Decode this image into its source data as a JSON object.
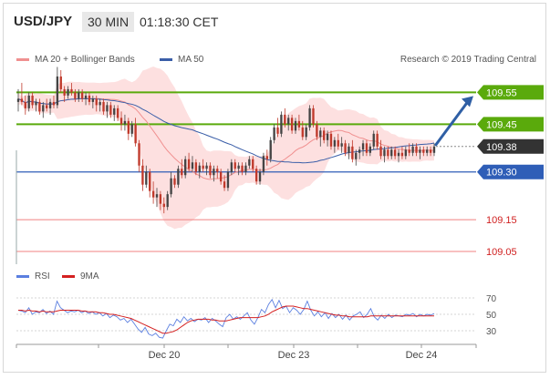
{
  "header": {
    "pair": "USD/JPY",
    "timeframe": "30 MIN",
    "time": "01:18:30 CET"
  },
  "legend": {
    "ma20_label": "MA 20 + Bollinger Bands",
    "ma50_label": "MA 50",
    "credit": "Research © 2019 Trading Central",
    "rsi_label": "RSI",
    "ma9_label": "9MA"
  },
  "colors": {
    "resistance": "#5aaa0c",
    "support": "#2f5eb7",
    "price_line": "#333333",
    "minor_level": "#f08080",
    "bollinger_fill": "#fde0e0",
    "ma20": "#f09090",
    "ma50": "#3a5ea8",
    "candle_up": "#444444",
    "candle_down": "#c0392b",
    "rsi": "#5b7fe0",
    "rsi_ma9": "#d42020",
    "arrow": "#2f5fa5"
  },
  "chart_data": {
    "type": "candlestick",
    "price_axis": {
      "min": 109.01,
      "max": 109.64
    },
    "levels": [
      {
        "label": "109.55",
        "value": 109.55,
        "kind": "resistance"
      },
      {
        "label": "109.45",
        "value": 109.45,
        "kind": "resistance"
      },
      {
        "label": "109.38",
        "value": 109.38,
        "kind": "current"
      },
      {
        "label": "109.30",
        "value": 109.3,
        "kind": "support"
      },
      {
        "label": "109.15",
        "value": 109.15,
        "kind": "minor"
      },
      {
        "label": "109.05",
        "value": 109.05,
        "kind": "minor"
      }
    ],
    "x_labels": [
      "Dec 20",
      "Dec 23",
      "Dec 24"
    ],
    "candles": [
      [
        109.52,
        109.56,
        109.49,
        109.53
      ],
      [
        109.53,
        109.58,
        109.51,
        109.52
      ],
      [
        109.52,
        109.54,
        109.48,
        109.5
      ],
      [
        109.5,
        109.55,
        109.49,
        109.54
      ],
      [
        109.54,
        109.55,
        109.5,
        109.51
      ],
      [
        109.51,
        109.53,
        109.49,
        109.52
      ],
      [
        109.52,
        109.53,
        109.48,
        109.49
      ],
      [
        109.49,
        109.52,
        109.47,
        109.51
      ],
      [
        109.51,
        109.53,
        109.49,
        109.5
      ],
      [
        109.5,
        109.53,
        109.48,
        109.52
      ],
      [
        109.52,
        109.54,
        109.5,
        109.51
      ],
      [
        109.51,
        109.63,
        109.5,
        109.6
      ],
      [
        109.6,
        109.62,
        109.55,
        109.56
      ],
      [
        109.56,
        109.57,
        109.52,
        109.54
      ],
      [
        109.54,
        109.57,
        109.53,
        109.56
      ],
      [
        109.56,
        109.58,
        109.54,
        109.55
      ],
      [
        109.55,
        109.56,
        109.52,
        109.53
      ],
      [
        109.53,
        109.56,
        109.52,
        109.55
      ],
      [
        109.55,
        109.56,
        109.52,
        109.53
      ],
      [
        109.53,
        109.55,
        109.51,
        109.54
      ],
      [
        109.54,
        109.55,
        109.51,
        109.52
      ],
      [
        109.52,
        109.54,
        109.5,
        109.53
      ],
      [
        109.53,
        109.54,
        109.49,
        109.51
      ],
      [
        109.51,
        109.53,
        109.49,
        109.52
      ],
      [
        109.52,
        109.53,
        109.48,
        109.49
      ],
      [
        109.49,
        109.52,
        109.47,
        109.51
      ],
      [
        109.51,
        109.52,
        109.47,
        109.48
      ],
      [
        109.48,
        109.51,
        109.46,
        109.5
      ],
      [
        109.5,
        109.51,
        109.46,
        109.47
      ],
      [
        109.47,
        109.49,
        109.43,
        109.45
      ],
      [
        109.45,
        109.48,
        109.43,
        109.46
      ],
      [
        109.46,
        109.47,
        109.4,
        109.42
      ],
      [
        109.42,
        109.46,
        109.41,
        109.45
      ],
      [
        109.45,
        109.47,
        109.38,
        109.39
      ],
      [
        109.39,
        109.4,
        109.3,
        109.32
      ],
      [
        109.32,
        109.34,
        109.24,
        109.26
      ],
      [
        109.26,
        109.32,
        109.25,
        109.3
      ],
      [
        109.3,
        109.31,
        109.22,
        109.24
      ],
      [
        109.24,
        109.27,
        109.2,
        109.22
      ],
      [
        109.22,
        109.25,
        109.19,
        109.23
      ],
      [
        109.23,
        109.24,
        109.18,
        109.2
      ],
      [
        109.2,
        109.22,
        109.17,
        109.19
      ],
      [
        109.19,
        109.24,
        109.18,
        109.23
      ],
      [
        109.23,
        109.3,
        109.22,
        109.28
      ],
      [
        109.28,
        109.29,
        109.25,
        109.26
      ],
      [
        109.26,
        109.32,
        109.25,
        109.31
      ],
      [
        109.31,
        109.34,
        109.28,
        109.29
      ],
      [
        109.29,
        109.35,
        109.28,
        109.34
      ],
      [
        109.34,
        109.36,
        109.3,
        109.31
      ],
      [
        109.31,
        109.35,
        109.3,
        109.33
      ],
      [
        109.33,
        109.34,
        109.29,
        109.3
      ],
      [
        109.3,
        109.33,
        109.28,
        109.32
      ],
      [
        109.32,
        109.34,
        109.3,
        109.31
      ],
      [
        109.31,
        109.33,
        109.29,
        109.32
      ],
      [
        109.32,
        109.33,
        109.28,
        109.29
      ],
      [
        109.29,
        109.32,
        109.27,
        109.31
      ],
      [
        109.31,
        109.32,
        109.28,
        109.3
      ],
      [
        109.3,
        109.31,
        109.26,
        109.27
      ],
      [
        109.27,
        109.29,
        109.24,
        109.25
      ],
      [
        109.25,
        109.31,
        109.24,
        109.3
      ],
      [
        109.3,
        109.34,
        109.29,
        109.33
      ],
      [
        109.33,
        109.34,
        109.3,
        109.31
      ],
      [
        109.31,
        109.33,
        109.29,
        109.32
      ],
      [
        109.32,
        109.33,
        109.29,
        109.3
      ],
      [
        109.3,
        109.33,
        109.29,
        109.32
      ],
      [
        109.32,
        109.35,
        109.31,
        109.34
      ],
      [
        109.34,
        109.35,
        109.3,
        109.31
      ],
      [
        109.31,
        109.32,
        109.26,
        109.27
      ],
      [
        109.27,
        109.31,
        109.26,
        109.3
      ],
      [
        109.3,
        109.36,
        109.29,
        109.35
      ],
      [
        109.35,
        109.37,
        109.32,
        109.34
      ],
      [
        109.34,
        109.41,
        109.33,
        109.4
      ],
      [
        109.4,
        109.45,
        109.39,
        109.44
      ],
      [
        109.44,
        109.47,
        109.41,
        109.42
      ],
      [
        109.42,
        109.49,
        109.41,
        109.48
      ],
      [
        109.48,
        109.5,
        109.44,
        109.45
      ],
      [
        109.45,
        109.48,
        109.43,
        109.47
      ],
      [
        109.47,
        109.48,
        109.42,
        109.43
      ],
      [
        109.43,
        109.47,
        109.42,
        109.46
      ],
      [
        109.46,
        109.48,
        109.43,
        109.44
      ],
      [
        109.44,
        109.46,
        109.4,
        109.41
      ],
      [
        109.41,
        109.45,
        109.4,
        109.44
      ],
      [
        109.44,
        109.51,
        109.43,
        109.5
      ],
      [
        109.5,
        109.51,
        109.44,
        109.45
      ],
      [
        109.45,
        109.46,
        109.4,
        109.41
      ],
      [
        109.41,
        109.44,
        109.38,
        109.43
      ],
      [
        109.43,
        109.44,
        109.39,
        109.4
      ],
      [
        109.4,
        109.43,
        109.38,
        109.42
      ],
      [
        109.42,
        109.43,
        109.37,
        109.38
      ],
      [
        109.38,
        109.41,
        109.36,
        109.4
      ],
      [
        109.4,
        109.42,
        109.37,
        109.38
      ],
      [
        109.38,
        109.41,
        109.36,
        109.39
      ],
      [
        109.39,
        109.4,
        109.35,
        109.36
      ],
      [
        109.36,
        109.39,
        109.34,
        109.38
      ],
      [
        109.38,
        109.4,
        109.33,
        109.34
      ],
      [
        109.34,
        109.37,
        109.32,
        109.36
      ],
      [
        109.36,
        109.38,
        109.34,
        109.37
      ],
      [
        109.37,
        109.4,
        109.35,
        109.39
      ],
      [
        109.39,
        109.4,
        109.35,
        109.36
      ],
      [
        109.36,
        109.39,
        109.35,
        109.38
      ],
      [
        109.38,
        109.43,
        109.37,
        109.42
      ],
      [
        109.42,
        109.43,
        109.37,
        109.38
      ],
      [
        109.38,
        109.4,
        109.34,
        109.35
      ],
      [
        109.35,
        109.38,
        109.33,
        109.37
      ],
      [
        109.37,
        109.38,
        109.34,
        109.35
      ],
      [
        109.35,
        109.38,
        109.34,
        109.37
      ],
      [
        109.37,
        109.38,
        109.34,
        109.35
      ],
      [
        109.35,
        109.37,
        109.33,
        109.36
      ],
      [
        109.36,
        109.38,
        109.34,
        109.35
      ],
      [
        109.35,
        109.38,
        109.34,
        109.37
      ],
      [
        109.37,
        109.39,
        109.35,
        109.36
      ],
      [
        109.36,
        109.39,
        109.35,
        109.38
      ],
      [
        109.38,
        109.39,
        109.35,
        109.36
      ],
      [
        109.36,
        109.38,
        109.34,
        109.37
      ],
      [
        109.37,
        109.38,
        109.35,
        109.36
      ],
      [
        109.36,
        109.38,
        109.35,
        109.37
      ],
      [
        109.37,
        109.38,
        109.35,
        109.36
      ],
      [
        109.36,
        109.39,
        109.35,
        109.38
      ]
    ],
    "rsi": {
      "levels": [
        70,
        50,
        30
      ],
      "rsi_values": [
        55,
        54,
        52,
        58,
        50,
        53,
        52,
        56,
        51,
        54,
        50,
        66,
        58,
        55,
        52,
        54,
        53,
        55,
        52,
        54,
        51,
        53,
        50,
        52,
        48,
        51,
        46,
        49,
        47,
        43,
        45,
        40,
        44,
        38,
        32,
        28,
        34,
        26,
        24,
        27,
        22,
        21,
        30,
        38,
        36,
        44,
        40,
        47,
        42,
        45,
        41,
        44,
        43,
        46,
        40,
        45,
        42,
        38,
        35,
        46,
        50,
        44,
        47,
        44,
        48,
        52,
        43,
        38,
        46,
        56,
        52,
        62,
        68,
        58,
        67,
        57,
        60,
        52,
        58,
        55,
        50,
        56,
        66,
        55,
        48,
        53,
        47,
        52,
        45,
        51,
        46,
        50,
        44,
        49,
        43,
        48,
        50,
        53,
        46,
        50,
        57,
        47,
        43,
        49,
        45,
        50,
        46,
        49,
        48,
        47,
        50,
        49,
        51,
        47,
        50,
        48,
        50,
        49,
        51
      ],
      "ma9_values": [
        55,
        55,
        54,
        55,
        54,
        54,
        53,
        54,
        53,
        53,
        53,
        54,
        55,
        55,
        55,
        55,
        55,
        55,
        54,
        54,
        53,
        53,
        53,
        52,
        52,
        51,
        50,
        50,
        49,
        48,
        47,
        46,
        45,
        43,
        41,
        39,
        37,
        35,
        33,
        31,
        29,
        27,
        27,
        28,
        29,
        31,
        34,
        37,
        40,
        42,
        43,
        44,
        44,
        44,
        44,
        43,
        43,
        42,
        42,
        42,
        43,
        44,
        45,
        46,
        46,
        46,
        46,
        46,
        46,
        47,
        48,
        50,
        53,
        55,
        57,
        59,
        60,
        60,
        60,
        59,
        58,
        57,
        57,
        56,
        55,
        54,
        53,
        52,
        51,
        50,
        49,
        49,
        48,
        48,
        47,
        47,
        47,
        47,
        47,
        47,
        48,
        48,
        48,
        48,
        48,
        48,
        48,
        48,
        48,
        48,
        48,
        48,
        48,
        48,
        48,
        48,
        48,
        48,
        48
      ]
    }
  }
}
